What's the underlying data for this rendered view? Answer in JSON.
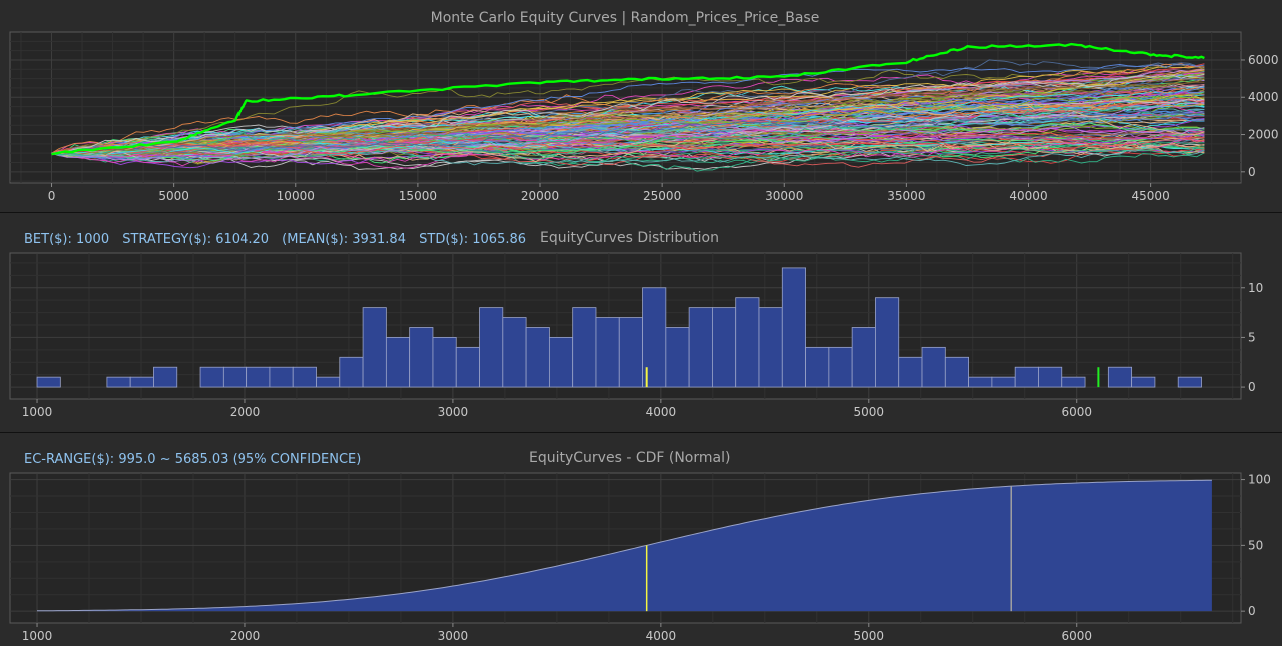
{
  "equity_panel": {
    "title": "Monte Carlo Equity Curves | Random_Prices_Price_Base"
  },
  "dist_panel": {
    "stats": {
      "bet": "BET($): 1000",
      "strategy": "STRATEGY($): 6104.20",
      "mean": "(MEAN($): 3931.84",
      "std": "STD($): 1065.86"
    },
    "title": "EquityCurves Distribution"
  },
  "cdf_panel": {
    "range": "EC-RANGE($): 995.0 ~ 5685.03 (95% CONFIDENCE)",
    "title": "EquityCurves - CDF (Normal)"
  },
  "colors": {
    "background": "#2b2b2b",
    "plot_bg": "#262626",
    "bar_fill": "#2f4593",
    "mean_marker": "#f5f542",
    "strategy_marker": "#22ee22",
    "best_curve": "#00ff00",
    "stats_text": "#8fc3ef"
  },
  "chart_data": [
    {
      "type": "line",
      "title": "Monte Carlo Equity Curves | Random_Prices_Price_Base",
      "x_ticks": [
        0,
        5000,
        10000,
        15000,
        20000,
        25000,
        30000,
        35000,
        40000,
        45000
      ],
      "y_ticks": [
        0,
        2000,
        4000,
        6000
      ],
      "xlim": [
        -1700,
        48700
      ],
      "ylim": [
        -600,
        7500
      ],
      "x_end": 47200,
      "start_value": 1000,
      "final_range": [
        995,
        6104
      ],
      "n_curves": 140,
      "highlighted_series": {
        "x": [
          0,
          5000,
          7500,
          8000,
          12000,
          20000,
          25000,
          30000,
          35000,
          37500,
          42000,
          45000,
          47200
        ],
        "y": [
          1000,
          1600,
          2800,
          3800,
          4100,
          4800,
          5000,
          5100,
          5900,
          6700,
          6800,
          6300,
          6104
        ]
      },
      "grid": true
    },
    {
      "type": "bar",
      "title": "EquityCurves Distribution",
      "bin_start": 1000,
      "bin_width": 112,
      "values": [
        1,
        0,
        0,
        1,
        1,
        2,
        0,
        2,
        2,
        2,
        2,
        2,
        1,
        3,
        8,
        5,
        6,
        5,
        4,
        8,
        7,
        6,
        5,
        8,
        7,
        7,
        10,
        6,
        8,
        8,
        9,
        8,
        12,
        4,
        4,
        6,
        9,
        3,
        4,
        3,
        1,
        1,
        2,
        2,
        1,
        0,
        2,
        1,
        0,
        1
      ],
      "x_ticks": [
        1000,
        2000,
        3000,
        4000,
        5000,
        6000
      ],
      "y_ticks": [
        0,
        5,
        10
      ],
      "xlim": [
        870,
        6790
      ],
      "ylim": [
        -1.2,
        13.5
      ],
      "markers": [
        {
          "label": "MEAN",
          "x": 3931.84,
          "height": 2,
          "color": "#f5f542"
        },
        {
          "label": "STRATEGY",
          "x": 6104.2,
          "height": 2,
          "color": "#22ee22"
        }
      ],
      "grid": true
    },
    {
      "type": "area",
      "title": "EquityCurves - CDF (Normal)",
      "mean": 3931.84,
      "std": 1065.86,
      "x_range": [
        1000,
        6650
      ],
      "x_ticks": [
        1000,
        2000,
        3000,
        4000,
        5000,
        6000
      ],
      "y_ticks": [
        0,
        50,
        100
      ],
      "xlim": [
        870,
        6790
      ],
      "ylim": [
        -9,
        105
      ],
      "markers": [
        {
          "x": 3931.84,
          "color": "#f5f542"
        },
        {
          "x": 5685.03,
          "color": "#a0a0a0"
        }
      ],
      "grid": true
    }
  ]
}
